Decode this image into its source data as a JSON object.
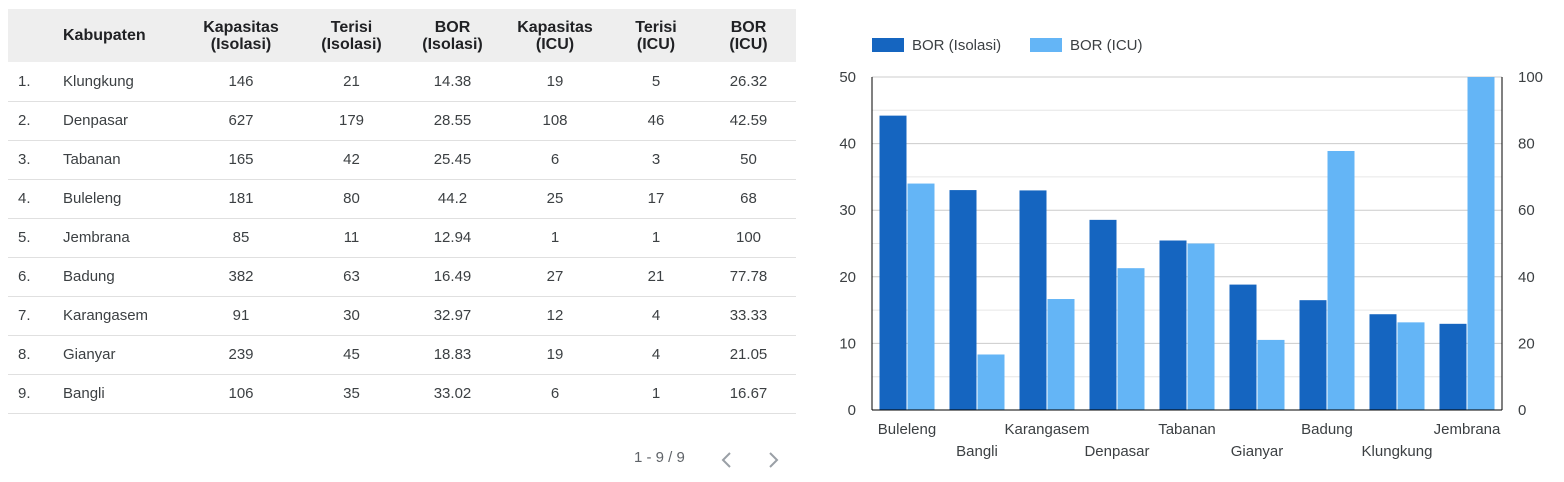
{
  "table": {
    "headers": [
      {
        "line1": "",
        "line2": ""
      },
      {
        "line1": "Kabupaten",
        "line2": ""
      },
      {
        "line1": "Kapasitas",
        "line2": "(Isolasi)"
      },
      {
        "line1": "Terisi",
        "line2": "(Isolasi)"
      },
      {
        "line1": "BOR",
        "line2": "(Isolasi)"
      },
      {
        "line1": "Kapasitas",
        "line2": "(ICU)"
      },
      {
        "line1": "Terisi",
        "line2": "(ICU)"
      },
      {
        "line1": "BOR",
        "line2": "(ICU)"
      }
    ],
    "rows": [
      [
        "1.",
        "Klungkung",
        "146",
        "21",
        "14.38",
        "19",
        "5",
        "26.32"
      ],
      [
        "2.",
        "Denpasar",
        "627",
        "179",
        "28.55",
        "108",
        "46",
        "42.59"
      ],
      [
        "3.",
        "Tabanan",
        "165",
        "42",
        "25.45",
        "6",
        "3",
        "50"
      ],
      [
        "4.",
        "Buleleng",
        "181",
        "80",
        "44.2",
        "25",
        "17",
        "68"
      ],
      [
        "5.",
        "Jembrana",
        "85",
        "11",
        "12.94",
        "1",
        "1",
        "100"
      ],
      [
        "6.",
        "Badung",
        "382",
        "63",
        "16.49",
        "27",
        "21",
        "77.78"
      ],
      [
        "7.",
        "Karangasem",
        "91",
        "30",
        "32.97",
        "12",
        "4",
        "33.33"
      ],
      [
        "8.",
        "Gianyar",
        "239",
        "45",
        "18.83",
        "19",
        "4",
        "21.05"
      ],
      [
        "9.",
        "Bangli",
        "106",
        "35",
        "33.02",
        "6",
        "1",
        "16.67"
      ]
    ]
  },
  "pagination": {
    "label": "1 - 9 / 9",
    "prev_icon": "chevron-left-icon",
    "next_icon": "chevron-right-icon"
  },
  "colors": {
    "series_isolasi": "#1565c0",
    "series_icu": "#64b5f6",
    "grid": "#cccccc",
    "axis": "#000000",
    "header_bg": "#eeeeee",
    "pager_icon": "#9aa0a6"
  },
  "chart_data": {
    "type": "bar",
    "categories": [
      "Buleleng",
      "Bangli",
      "Karangasem",
      "Denpasar",
      "Tabanan",
      "Gianyar",
      "Badung",
      "Klungkung",
      "Jembrana"
    ],
    "series": [
      {
        "name": "BOR (Isolasi)",
        "axis": "left",
        "values": [
          44.2,
          33.02,
          32.97,
          28.55,
          25.45,
          18.83,
          16.49,
          14.38,
          12.94
        ]
      },
      {
        "name": "BOR (ICU)",
        "axis": "right",
        "values": [
          68,
          16.67,
          33.33,
          42.59,
          50,
          21.05,
          77.78,
          26.32,
          100
        ]
      }
    ],
    "y_left": {
      "min": 0,
      "max": 50,
      "ticks": [
        0,
        10,
        20,
        30,
        40,
        50
      ]
    },
    "y_right": {
      "min": 0,
      "max": 100,
      "ticks": [
        0,
        20,
        40,
        60,
        80,
        100
      ]
    },
    "grid": true,
    "legend_position": "top-left"
  }
}
